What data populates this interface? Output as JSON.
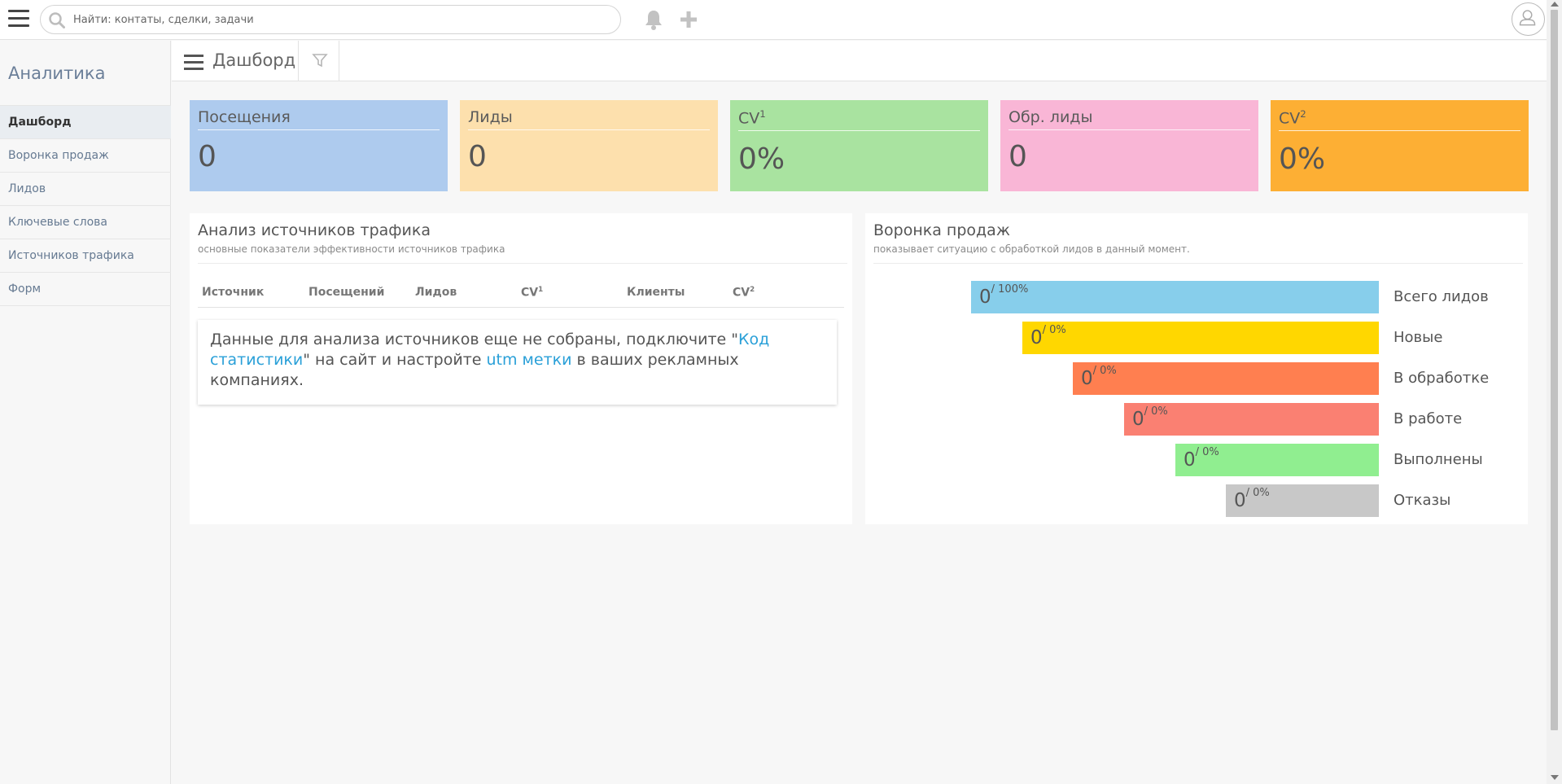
{
  "topbar": {
    "search_placeholder": "Найти: контаты, сделки, задачи",
    "icons": [
      "menu-icon",
      "search-icon",
      "bell-icon",
      "plus-icon",
      "user-icon"
    ]
  },
  "sidebar": {
    "title": "Аналитика",
    "items": [
      {
        "label": "Дашборд",
        "active": true
      },
      {
        "label": "Воронка продаж"
      },
      {
        "label": "Лидов"
      },
      {
        "label": "Ключевые слова"
      },
      {
        "label": "Источников трафика"
      },
      {
        "label": "Форм"
      }
    ]
  },
  "header": {
    "title": "Дашборд"
  },
  "kpis": [
    {
      "label": "Посещения",
      "value": "0",
      "color": "#aecbee"
    },
    {
      "label": "Лиды",
      "value": "0",
      "color": "#fde0ad"
    },
    {
      "label": "CV",
      "sup": "1",
      "value": "0%",
      "color": "#a9e3a0"
    },
    {
      "label": "Обр. лиды",
      "value": "0",
      "color": "#f9b6d6"
    },
    {
      "label": "CV",
      "sup": "2",
      "value": "0%",
      "color": "#fdaf34"
    }
  ],
  "traffic": {
    "title": "Анализ источников трафика",
    "subtitle": "основные показатели эффективности источников трафика",
    "columns": [
      {
        "label": "Источник"
      },
      {
        "label": "Посещений"
      },
      {
        "label": "Лидов"
      },
      {
        "label": "CV",
        "sup": "1"
      },
      {
        "label": "Клиенты"
      },
      {
        "label": "CV",
        "sup": "2"
      }
    ],
    "notice": {
      "before": "Данные для анализа источников еще не собраны, подключите \"",
      "link1": "Код статистики",
      "middle": "\" на сайт и настройте ",
      "link2": "utm метки",
      "after": " в ваших рекламных компаниях."
    }
  },
  "funnel": {
    "title": "Воронка продаж",
    "subtitle": "показывает ситуацию с обработкой лидов в данный момент.",
    "stages": [
      {
        "label": "Всего лидов",
        "count": "0",
        "pct": "/ 100%",
        "color": "#87ceeb"
      },
      {
        "label": "Новые",
        "count": "0",
        "pct": "/ 0%",
        "color": "#ffd700"
      },
      {
        "label": "В обработке",
        "count": "0",
        "pct": "/ 0%",
        "color": "#ff7f50"
      },
      {
        "label": "В работе",
        "count": "0",
        "pct": "/ 0%",
        "color": "#fa8072"
      },
      {
        "label": "Выполнены",
        "count": "0",
        "pct": "/ 0%",
        "color": "#90ee90"
      },
      {
        "label": "Отказы",
        "count": "0",
        "pct": "/ 0%",
        "color": "#c8c8c8"
      }
    ]
  }
}
